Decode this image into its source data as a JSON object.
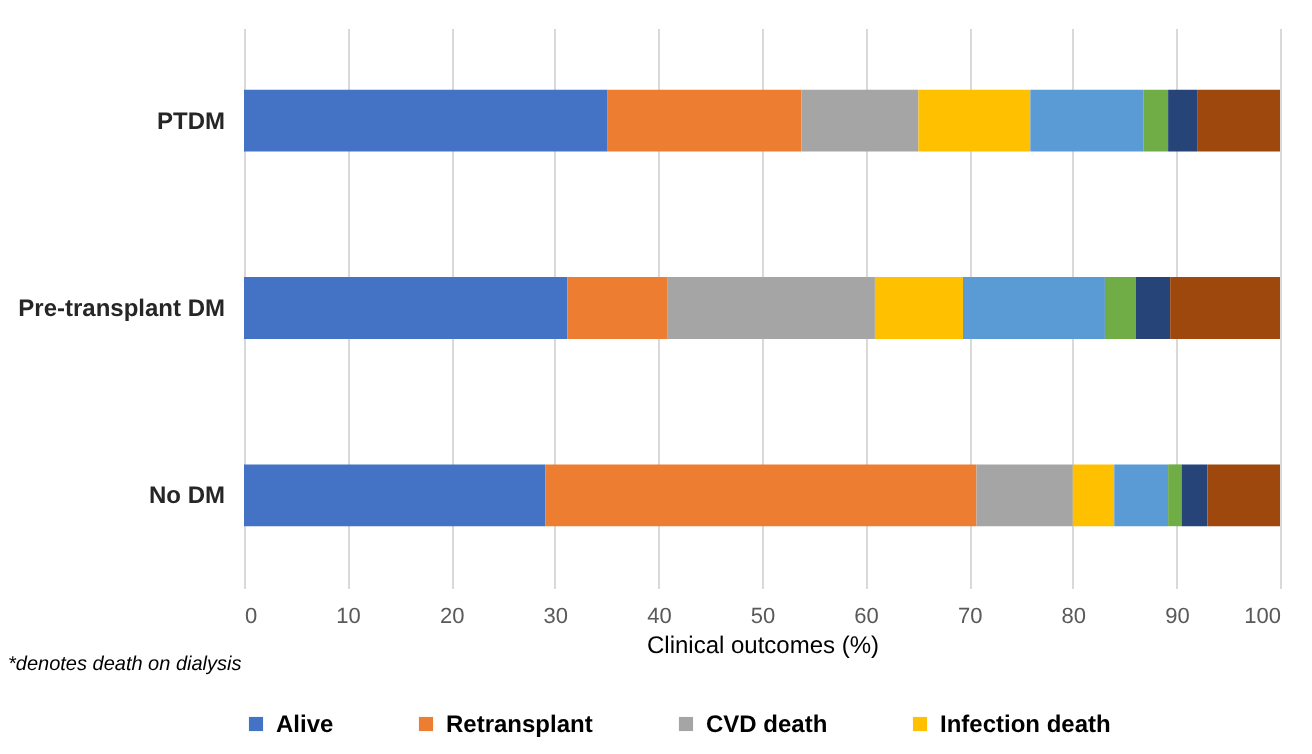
{
  "chart_data": {
    "type": "bar",
    "orientation": "horizontal",
    "stacked": true,
    "categories": [
      "PTDM",
      "Pre-transplant DM",
      "No DM"
    ],
    "series": [
      {
        "name": "Alive",
        "color": "#4472c4",
        "values": [
          35.1,
          31.2,
          29.1
        ]
      },
      {
        "name": "Retransplant",
        "color": "#ed7d31",
        "values": [
          18.7,
          9.7,
          41.6
        ]
      },
      {
        "name": "CVD death",
        "color": "#a5a5a5",
        "values": [
          11.3,
          20.0,
          9.3
        ]
      },
      {
        "name": "Infection death",
        "color": "#ffc000",
        "values": [
          10.8,
          8.5,
          4.0
        ]
      },
      {
        "color": "#5b9bd5",
        "values": [
          10.9,
          13.7,
          5.2
        ]
      },
      {
        "color": "#70ad47",
        "values": [
          2.4,
          3.0,
          1.3
        ]
      },
      {
        "color": "#264478",
        "values": [
          2.8,
          3.3,
          2.5
        ]
      },
      {
        "color": "#9e480e",
        "values": [
          8.0,
          10.6,
          7.0
        ]
      }
    ],
    "xlim": [
      0,
      100
    ],
    "xticks": [
      0,
      10,
      20,
      30,
      40,
      50,
      60,
      70,
      80,
      90,
      100
    ],
    "xlabel": "Clinical outcomes (%)",
    "grid": "x",
    "legend": "bottom",
    "annotations": [
      "*denotes death on dialysis"
    ]
  }
}
